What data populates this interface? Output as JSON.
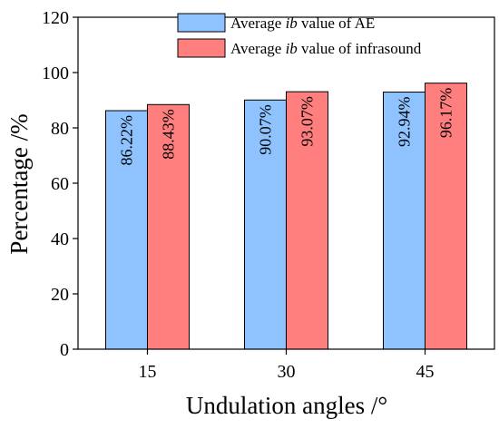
{
  "chart_data": {
    "type": "bar",
    "categories": [
      "15",
      "30",
      "45"
    ],
    "series": [
      {
        "name_prefix": "Average ",
        "name_italic": "ib",
        "name_suffix": " value of AE",
        "values": [
          86.22,
          90.07,
          92.94
        ],
        "labels": [
          "86.22%",
          "90.07%",
          "92.94%"
        ],
        "color": "#8ec3ff"
      },
      {
        "name_prefix": "Average ",
        "name_italic": "ib",
        "name_suffix": " value of infrasound",
        "values": [
          88.43,
          93.07,
          96.17
        ],
        "labels": [
          "88.43%",
          "93.07%",
          "96.17%"
        ],
        "color": "#ff7f7f"
      }
    ],
    "xlabel": "Undulation angles /°",
    "ylabel": "Percentage /%",
    "ylim": [
      0,
      120
    ],
    "yticks": [
      0,
      20,
      40,
      60,
      80,
      100,
      120
    ],
    "grid": false,
    "legend_position": "top-right"
  }
}
